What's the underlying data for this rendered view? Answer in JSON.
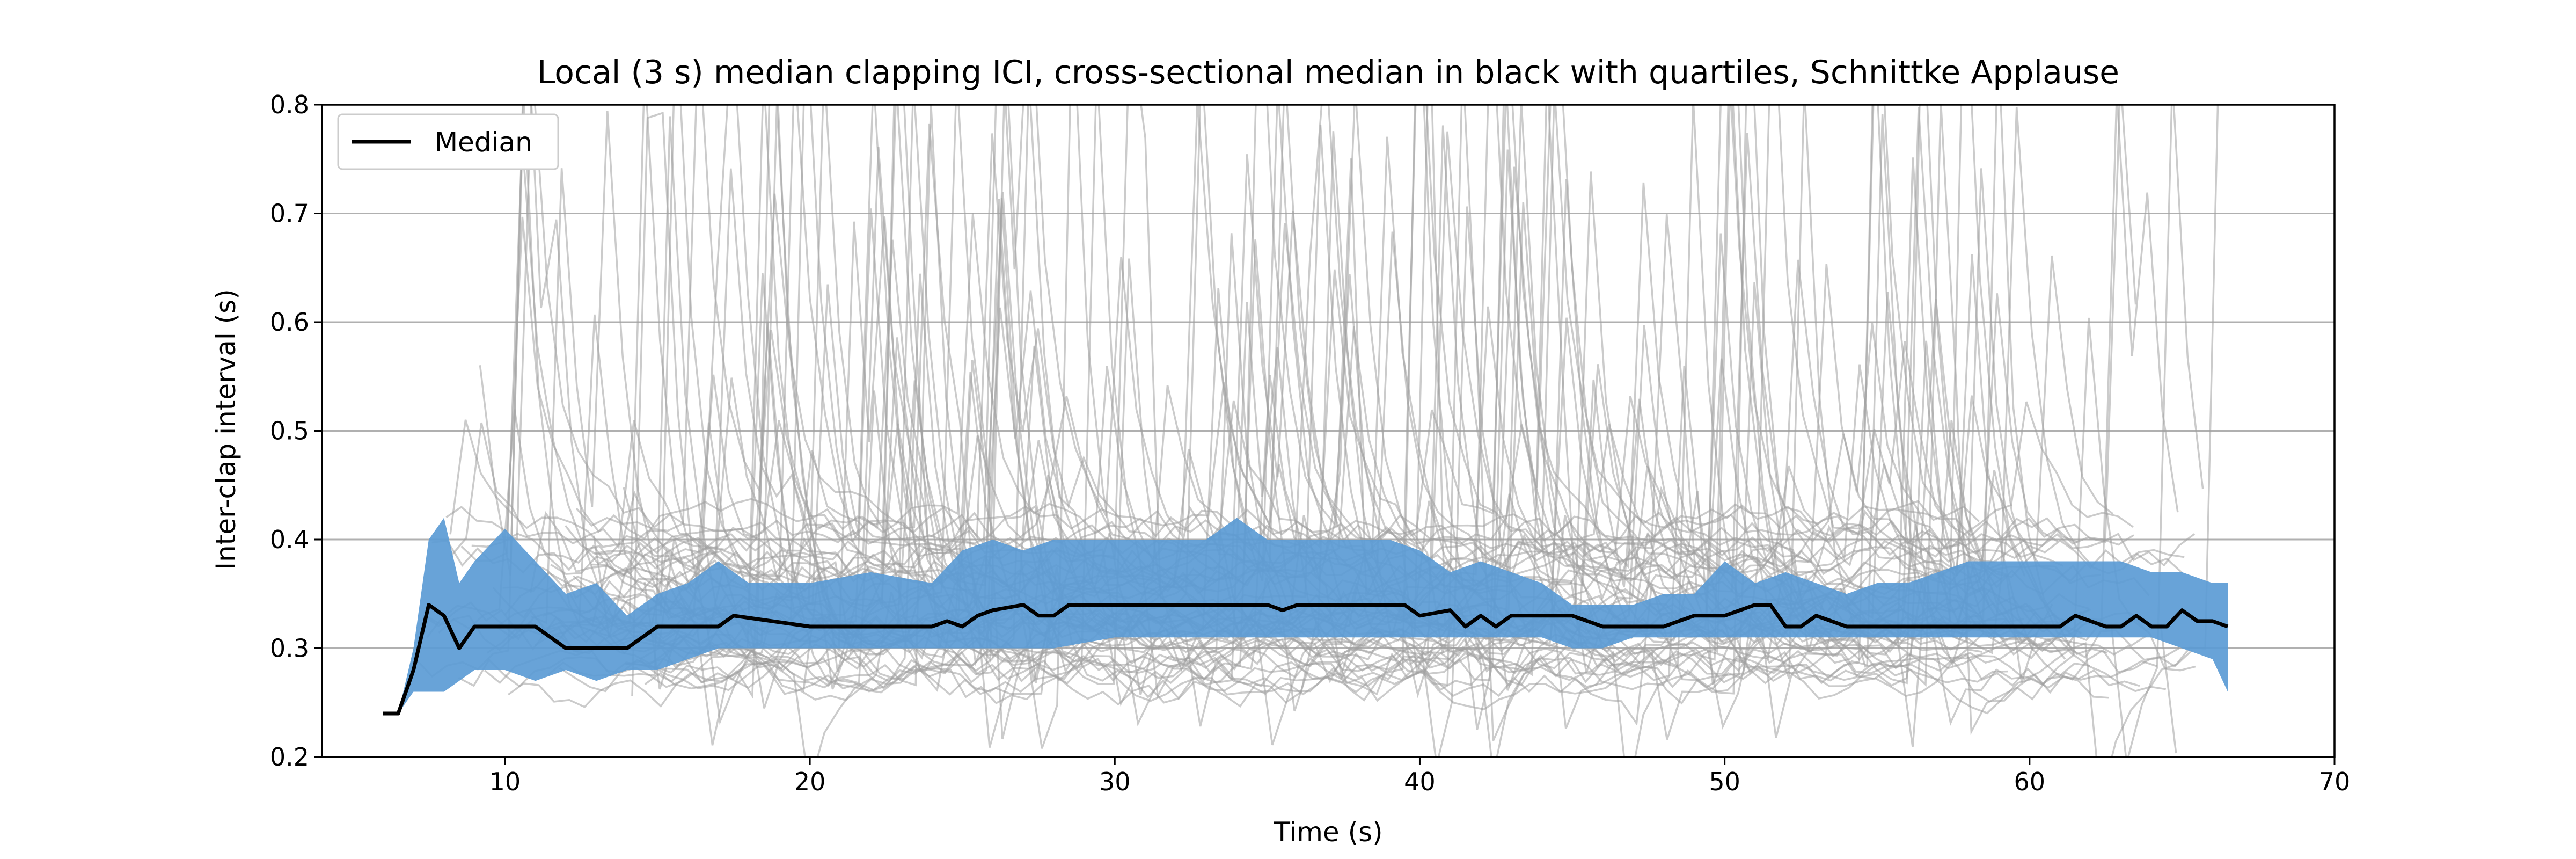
{
  "chart_data": {
    "type": "line",
    "title": "Local (3 s) median clapping ICI, cross-sectional median in black with quartiles, Schnittke Applause",
    "xlabel": "Time (s)",
    "ylabel": "Inter-clap interval (s)",
    "xlim": [
      4,
      70
    ],
    "ylim": [
      0.2,
      0.8
    ],
    "xticks": [
      10,
      20,
      30,
      40,
      50,
      60,
      70
    ],
    "xtick_labels": [
      "10",
      "20",
      "30",
      "40",
      "50",
      "60",
      "70"
    ],
    "yticks": [
      0.2,
      0.3,
      0.4,
      0.5,
      0.6,
      0.7,
      0.8
    ],
    "ytick_labels": [
      "0.2",
      "0.3",
      "0.4",
      "0.5",
      "0.6",
      "0.7",
      "0.8"
    ],
    "grid": "horizontal",
    "legend": {
      "position": "top-left",
      "entries": [
        "Median"
      ]
    },
    "colors": {
      "median": "#000000",
      "quartile_band": "#5b9bd5",
      "individual": "#a0a0a0"
    },
    "series": [
      {
        "name": "Median",
        "x": [
          6,
          6.5,
          7,
          7.5,
          8,
          8.5,
          9,
          10,
          11,
          12,
          13,
          14,
          15,
          16,
          17,
          17.5,
          20,
          24,
          24.5,
          25,
          25.5,
          26,
          27,
          27.5,
          28,
          28.5,
          30,
          35,
          35.5,
          36,
          37,
          38,
          39.5,
          40,
          41,
          41.5,
          42,
          42.5,
          43,
          44,
          45,
          46,
          47,
          48,
          49,
          50,
          51,
          51.5,
          52,
          52.5,
          53,
          54,
          55,
          56,
          57,
          58,
          59,
          60,
          61,
          61.5,
          62,
          62.5,
          63,
          63.5,
          64,
          64.5,
          65,
          65.5,
          66,
          66.5
        ],
        "values": [
          0.24,
          0.24,
          0.28,
          0.34,
          0.33,
          0.3,
          0.32,
          0.32,
          0.32,
          0.3,
          0.3,
          0.3,
          0.32,
          0.32,
          0.32,
          0.33,
          0.32,
          0.32,
          0.325,
          0.32,
          0.33,
          0.335,
          0.34,
          0.33,
          0.33,
          0.34,
          0.34,
          0.34,
          0.335,
          0.34,
          0.34,
          0.34,
          0.34,
          0.33,
          0.335,
          0.32,
          0.33,
          0.32,
          0.33,
          0.33,
          0.33,
          0.32,
          0.32,
          0.32,
          0.33,
          0.33,
          0.34,
          0.34,
          0.32,
          0.32,
          0.33,
          0.32,
          0.32,
          0.32,
          0.32,
          0.32,
          0.32,
          0.32,
          0.32,
          0.33,
          0.325,
          0.32,
          0.32,
          0.33,
          0.32,
          0.32,
          0.335,
          0.325,
          0.325,
          0.32
        ]
      },
      {
        "name": "",
        "role": "quartiles",
        "x": [
          6,
          6.5,
          7,
          7.5,
          8,
          8.5,
          9,
          10,
          11,
          12,
          13,
          14,
          15,
          16,
          17,
          18,
          20,
          22,
          24,
          25,
          26,
          27,
          28,
          30,
          32,
          33,
          34,
          35,
          36,
          38,
          39,
          40,
          41,
          42,
          43,
          44,
          45,
          46,
          47,
          48,
          49,
          50,
          51,
          52,
          53,
          54,
          55,
          56,
          58,
          60,
          62,
          63,
          64,
          65,
          66,
          66.5
        ],
        "lower": [
          0.24,
          0.24,
          0.26,
          0.26,
          0.26,
          0.27,
          0.28,
          0.28,
          0.27,
          0.28,
          0.27,
          0.28,
          0.28,
          0.29,
          0.3,
          0.3,
          0.3,
          0.3,
          0.3,
          0.3,
          0.3,
          0.3,
          0.3,
          0.31,
          0.31,
          0.31,
          0.31,
          0.31,
          0.31,
          0.31,
          0.31,
          0.31,
          0.31,
          0.31,
          0.31,
          0.31,
          0.3,
          0.3,
          0.31,
          0.31,
          0.31,
          0.31,
          0.31,
          0.31,
          0.31,
          0.31,
          0.31,
          0.31,
          0.31,
          0.31,
          0.31,
          0.31,
          0.31,
          0.3,
          0.29,
          0.26
        ],
        "upper": [
          0.24,
          0.24,
          0.3,
          0.4,
          0.42,
          0.36,
          0.38,
          0.41,
          0.38,
          0.35,
          0.36,
          0.33,
          0.35,
          0.36,
          0.38,
          0.36,
          0.36,
          0.37,
          0.36,
          0.39,
          0.4,
          0.39,
          0.4,
          0.4,
          0.4,
          0.4,
          0.42,
          0.4,
          0.4,
          0.4,
          0.4,
          0.39,
          0.37,
          0.38,
          0.37,
          0.36,
          0.34,
          0.34,
          0.34,
          0.35,
          0.35,
          0.38,
          0.36,
          0.37,
          0.36,
          0.35,
          0.36,
          0.36,
          0.38,
          0.38,
          0.38,
          0.38,
          0.37,
          0.37,
          0.36,
          0.36
        ]
      }
    ]
  }
}
